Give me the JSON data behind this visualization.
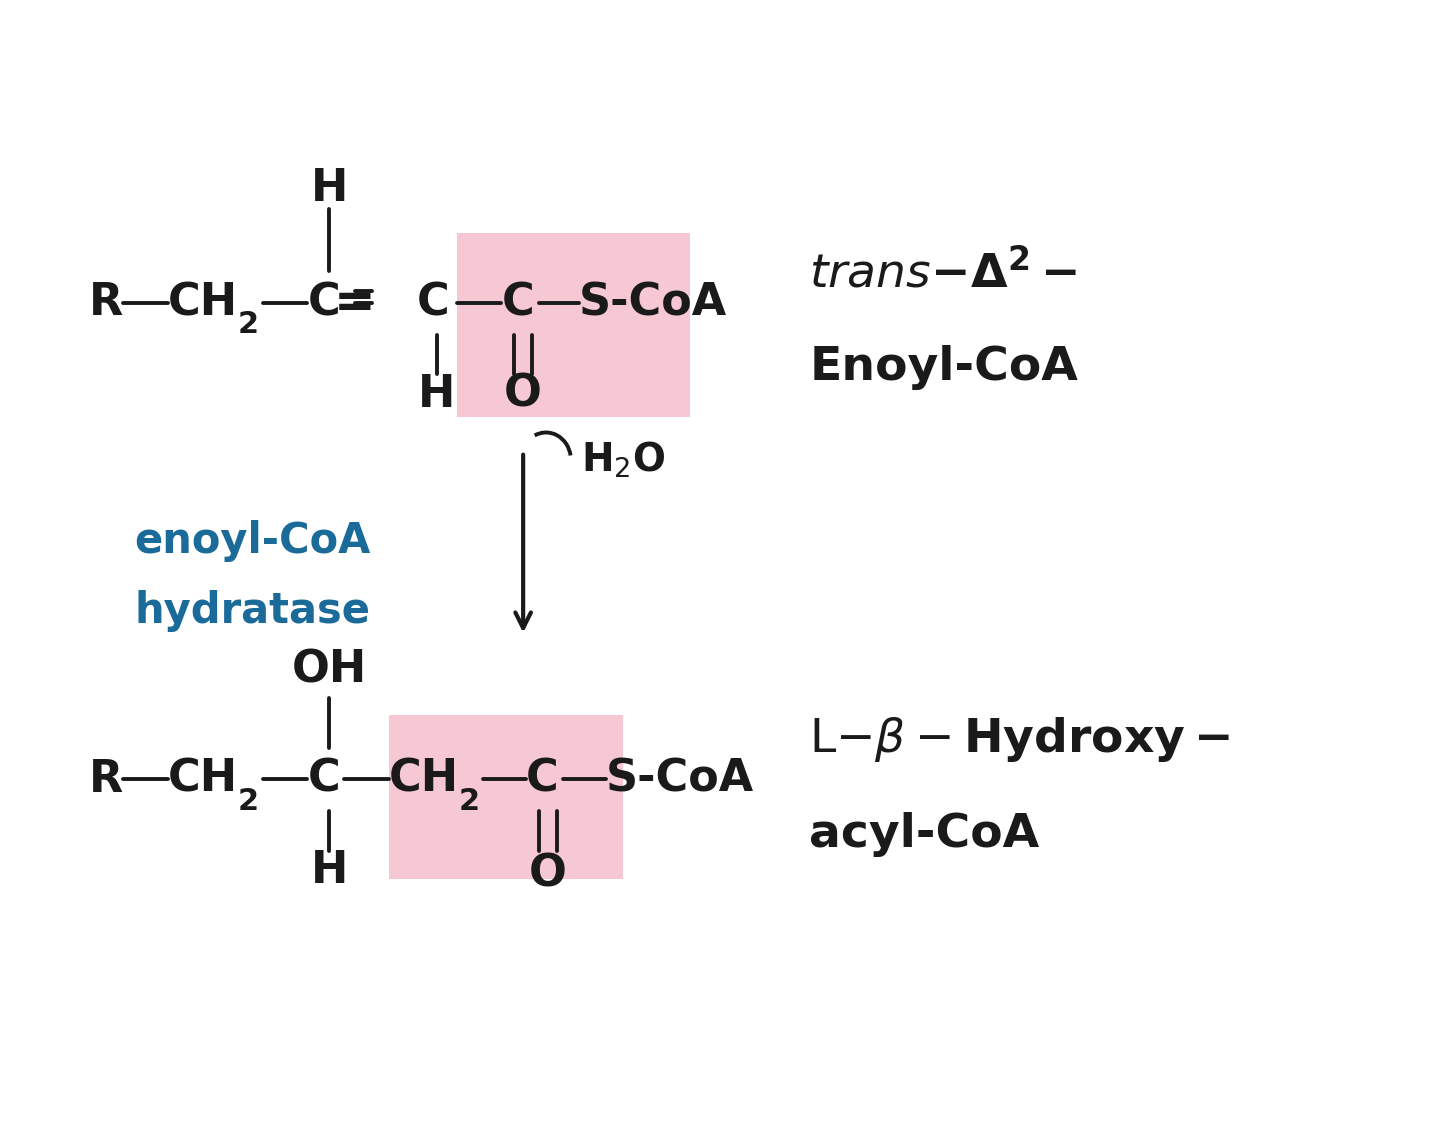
{
  "bg_color": "#ffffff",
  "text_color": "#1a1a1a",
  "pink_bg": "#f5c8d4",
  "blue_color": "#1b6b9a",
  "arrow_color": "#1a1a1a",
  "fig_width": 14.4,
  "fig_height": 11.31,
  "enzyme_label_line1": "enoyl-CoA",
  "enzyme_label_line2": "hydratase",
  "h2o_label": "H₂O",
  "top_label_line1": "trans -Δ²-",
  "top_label_line2": "Enoyl-CoA",
  "bottom_label_line1": "L -β-Hydroxy-",
  "bottom_label_line2": "acyl-CoA"
}
